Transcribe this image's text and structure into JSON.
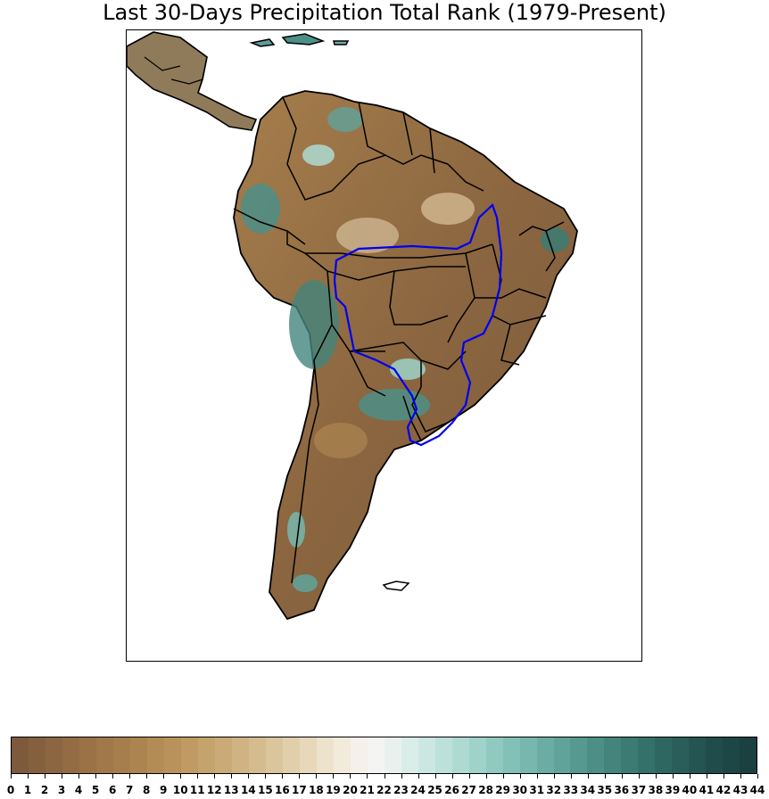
{
  "title": "Last 30-Days Precipitation Total Rank (1979-Present)",
  "map": {
    "region": "South America",
    "outline_color": "#000000",
    "highlight_region_color": "#0000ee",
    "ocean_color": "#ffffff"
  },
  "colorbar": {
    "ticks": [
      "0",
      "1",
      "2",
      "3",
      "4",
      "5",
      "6",
      "7",
      "8",
      "9",
      "10",
      "11",
      "12",
      "13",
      "14",
      "15",
      "16",
      "17",
      "18",
      "19",
      "20",
      "21",
      "22",
      "23",
      "24",
      "25",
      "26",
      "27",
      "28",
      "29",
      "30",
      "31",
      "32",
      "33",
      "34",
      "35",
      "36",
      "37",
      "38",
      "39",
      "40",
      "41",
      "42",
      "43",
      "44"
    ],
    "colors": [
      "#7d5a3c",
      "#84603e",
      "#8b6640",
      "#936c43",
      "#9a7246",
      "#a07849",
      "#a67e4c",
      "#ac8450",
      "#b28b55",
      "#b9925b",
      "#bf9a62",
      "#c5a36c",
      "#caab77",
      "#cfb383",
      "#d5bc8f",
      "#dbc59d",
      "#e1ceab",
      "#e7d8bb",
      "#ede2cb",
      "#f2ebdc",
      "#f5f1ea",
      "#f3f4f2",
      "#e9f1ee",
      "#dbede8",
      "#cce7e1",
      "#bde1da",
      "#aedad2",
      "#9fd2c9",
      "#90c9c0",
      "#83c0b7",
      "#77b7ae",
      "#6badA5",
      "#60a39b",
      "#569991",
      "#4c8f87",
      "#43857d",
      "#3b7b73",
      "#34716a",
      "#2e6762",
      "#295e5a",
      "#245553",
      "#204d4c",
      "#1d4646",
      "#1a4040"
    ]
  }
}
